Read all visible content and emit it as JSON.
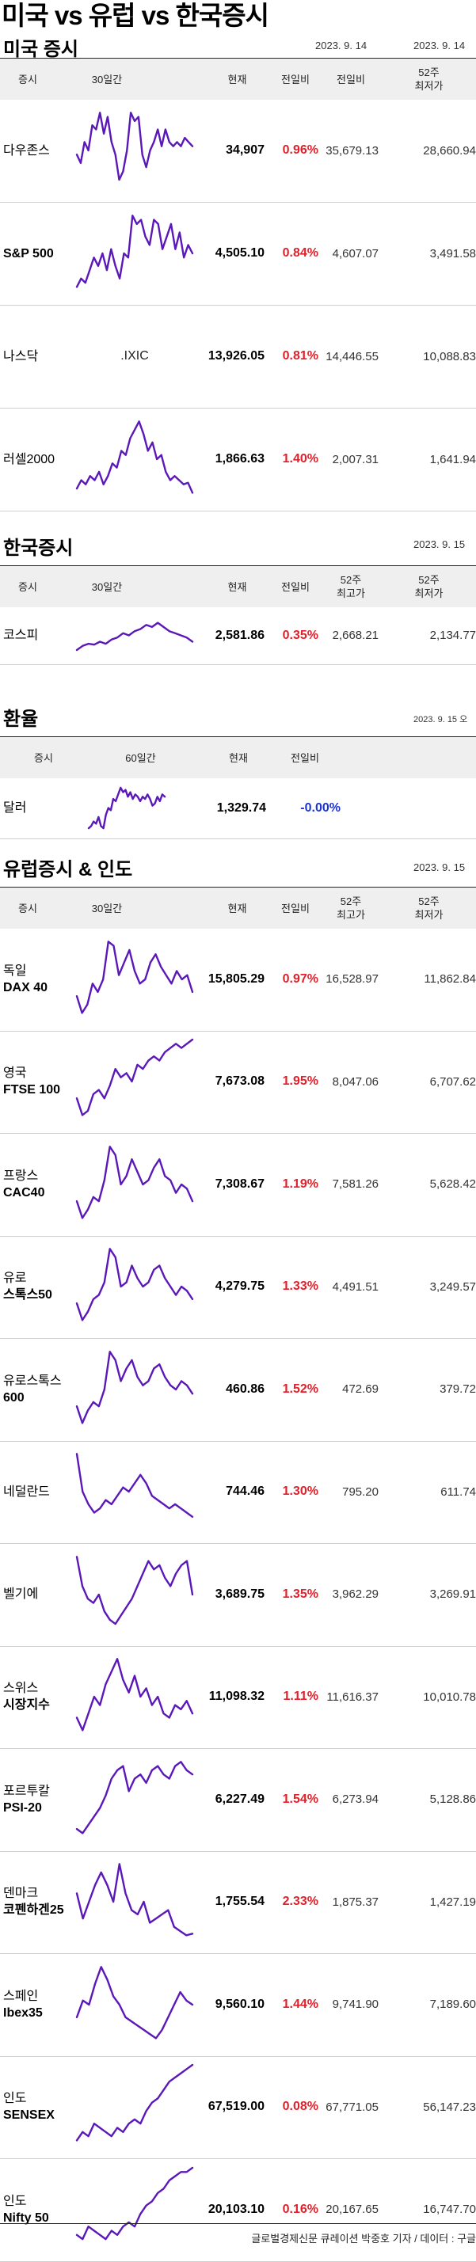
{
  "page_title": "미국 vs 유럽 vs 한국증시",
  "colors": {
    "line": "#5b18b8",
    "up": "#e0202a",
    "down": "#1a33d6",
    "header_bg": "#efefef"
  },
  "us": {
    "title": "미국 증시",
    "date1": "2023. 9. 14",
    "date2": "2023. 9. 14",
    "headers": [
      "증시",
      "30일간",
      "현재",
      "전일비",
      "전일비",
      "52주\n최저가"
    ],
    "rows": [
      {
        "name1": "다우존스",
        "name2": "",
        "current": "34,907",
        "change": "0.96%",
        "dir": "up",
        "v1": "35,679.13",
        "v2": "28,660.94",
        "spark": [
          0.45,
          0.35,
          0.6,
          0.5,
          0.8,
          0.75,
          0.95,
          0.7,
          0.9,
          0.6,
          0.45,
          0.15,
          0.25,
          0.5,
          0.95,
          0.85,
          0.9,
          0.45,
          0.3,
          0.5,
          0.6,
          0.75,
          0.55,
          0.75,
          0.6,
          0.55,
          0.6,
          0.55,
          0.65,
          0.6,
          0.55
        ]
      },
      {
        "name1": "S&P 500",
        "name2": "",
        "bold1": true,
        "current": "4,505.10",
        "change": "0.84%",
        "dir": "up",
        "v1": "4,607.07",
        "v2": "3,491.58",
        "spark": [
          0.1,
          0.2,
          0.15,
          0.3,
          0.45,
          0.35,
          0.5,
          0.3,
          0.55,
          0.35,
          0.2,
          0.5,
          0.45,
          0.95,
          0.85,
          0.9,
          0.7,
          0.6,
          0.9,
          0.85,
          0.55,
          0.7,
          0.85,
          0.55,
          0.75,
          0.45,
          0.6,
          0.5
        ]
      },
      {
        "name1": "나스닥",
        "name2": "",
        "ticker": ".IXIC",
        "current": "13,926.05",
        "change": "0.81%",
        "dir": "up",
        "v1": "14,446.55",
        "v2": "10,088.83"
      },
      {
        "name1": "러셀2000",
        "name2": "",
        "current": "1,866.63",
        "change": "1.40%",
        "dir": "up",
        "v1": "2,007.31",
        "v2": "1,641.94",
        "spark": [
          0.15,
          0.25,
          0.2,
          0.3,
          0.25,
          0.35,
          0.2,
          0.3,
          0.45,
          0.4,
          0.6,
          0.55,
          0.75,
          0.85,
          0.95,
          0.8,
          0.6,
          0.7,
          0.5,
          0.55,
          0.35,
          0.25,
          0.3,
          0.25,
          0.2,
          0.22,
          0.1
        ]
      }
    ]
  },
  "kr": {
    "title": "한국증시",
    "date": "2023. 9. 15",
    "headers": [
      "증시",
      "30일간",
      "현재",
      "전일비",
      "52주\n최고가",
      "52주\n최저가"
    ],
    "rows": [
      {
        "name1": "코스피",
        "name2": "",
        "current": "2,581.86",
        "change": "0.35%",
        "dir": "up",
        "v1": "2,668.21",
        "v2": "2,134.77",
        "spark": [
          0.15,
          0.25,
          0.3,
          0.28,
          0.35,
          0.3,
          0.4,
          0.45,
          0.55,
          0.5,
          0.6,
          0.65,
          0.75,
          0.7,
          0.8,
          0.7,
          0.6,
          0.55,
          0.5,
          0.45,
          0.35
        ]
      }
    ]
  },
  "fx": {
    "title": "환율",
    "date": "2023. 9. 15 오",
    "headers": [
      "증시",
      "60일간",
      "현재",
      "전일비"
    ],
    "rows": [
      {
        "name1": "달러",
        "name2": "",
        "current": "1,329.74",
        "change": "-0.00%",
        "dir": "down",
        "spark": [
          0.05,
          0.1,
          0.2,
          0.15,
          0.3,
          0.1,
          0.05,
          0.35,
          0.5,
          0.45,
          0.7,
          0.65,
          0.8,
          0.95,
          0.85,
          0.9,
          0.75,
          0.85,
          0.7,
          0.8,
          0.75,
          0.65,
          0.75,
          0.7,
          0.8,
          0.7,
          0.55,
          0.6,
          0.75,
          0.65,
          0.8,
          0.75
        ]
      }
    ]
  },
  "eu": {
    "title": "유럽증시 & 인도",
    "date": "2023. 9. 15",
    "headers": [
      "증시",
      "30일간",
      "현재",
      "전일비",
      "52주\n최고가",
      "52주\n최저가"
    ],
    "rows": [
      {
        "name1": "독일",
        "name2": "DAX 40",
        "current": "15,805.29",
        "change": "0.97%",
        "dir": "up",
        "v1": "16,528.97",
        "v2": "11,862.84",
        "spark": [
          0.3,
          0.1,
          0.2,
          0.45,
          0.35,
          0.5,
          0.95,
          0.9,
          0.55,
          0.7,
          0.85,
          0.6,
          0.45,
          0.5,
          0.7,
          0.8,
          0.65,
          0.55,
          0.45,
          0.6,
          0.5,
          0.55,
          0.35
        ]
      },
      {
        "name1": "영국",
        "name2": "FTSE 100",
        "current": "7,673.08",
        "change": "1.95%",
        "dir": "up",
        "v1": "8,047.06",
        "v2": "6,707.62",
        "spark": [
          0.3,
          0.1,
          0.15,
          0.35,
          0.4,
          0.3,
          0.45,
          0.65,
          0.55,
          0.6,
          0.5,
          0.7,
          0.65,
          0.75,
          0.8,
          0.75,
          0.85,
          0.9,
          0.95,
          0.9,
          0.95,
          1.0
        ]
      },
      {
        "name1": "프랑스",
        "name2": "CAC40",
        "current": "7,308.67",
        "change": "1.19%",
        "dir": "up",
        "v1": "7,581.26",
        "v2": "5,628.42",
        "spark": [
          0.3,
          0.1,
          0.2,
          0.35,
          0.3,
          0.55,
          0.95,
          0.85,
          0.5,
          0.6,
          0.8,
          0.65,
          0.5,
          0.55,
          0.7,
          0.8,
          0.6,
          0.55,
          0.4,
          0.5,
          0.45,
          0.3
        ]
      },
      {
        "name1": "유로",
        "name2": "스톡스50",
        "current": "4,279.75",
        "change": "1.33%",
        "dir": "up",
        "v1": "4,491.51",
        "v2": "3,249.57",
        "spark": [
          0.3,
          0.1,
          0.2,
          0.35,
          0.4,
          0.55,
          0.95,
          0.85,
          0.5,
          0.55,
          0.75,
          0.6,
          0.5,
          0.55,
          0.7,
          0.75,
          0.6,
          0.5,
          0.4,
          0.5,
          0.45,
          0.35
        ]
      },
      {
        "name1": "유로스톡스",
        "name2": "600",
        "current": "460.86",
        "change": "1.52%",
        "dir": "up",
        "v1": "472.69",
        "v2": "379.72",
        "spark": [
          0.3,
          0.1,
          0.25,
          0.35,
          0.3,
          0.5,
          0.95,
          0.85,
          0.6,
          0.75,
          0.85,
          0.65,
          0.55,
          0.6,
          0.75,
          0.8,
          0.65,
          0.55,
          0.5,
          0.6,
          0.55,
          0.45
        ]
      },
      {
        "name1": "네덜란드",
        "name2": "",
        "current": "744.46",
        "change": "1.30%",
        "dir": "up",
        "v1": "795.20",
        "v2": "611.74",
        "spark": [
          0.95,
          0.5,
          0.35,
          0.25,
          0.3,
          0.4,
          0.35,
          0.45,
          0.55,
          0.5,
          0.6,
          0.7,
          0.6,
          0.45,
          0.4,
          0.35,
          0.3,
          0.35,
          0.3,
          0.25,
          0.2
        ]
      },
      {
        "name1": "벨기에",
        "name2": "",
        "current": "3,689.75",
        "change": "1.35%",
        "dir": "up",
        "v1": "3,962.29",
        "v2": "3,269.91",
        "spark": [
          0.95,
          0.6,
          0.45,
          0.4,
          0.5,
          0.3,
          0.2,
          0.15,
          0.25,
          0.35,
          0.45,
          0.6,
          0.75,
          0.9,
          0.8,
          0.85,
          0.7,
          0.6,
          0.75,
          0.85,
          0.9,
          0.5
        ]
      },
      {
        "name1": "스위스",
        "name2": "시장지수",
        "current": "11,098.32",
        "change": "1.11%",
        "dir": "up",
        "v1": "11,616.37",
        "v2": "10,010.78",
        "spark": [
          0.25,
          0.1,
          0.3,
          0.5,
          0.4,
          0.65,
          0.8,
          0.95,
          0.7,
          0.55,
          0.75,
          0.5,
          0.6,
          0.4,
          0.5,
          0.3,
          0.25,
          0.4,
          0.35,
          0.45,
          0.3
        ]
      },
      {
        "name1": "포르투칼",
        "name2": "PSI-20",
        "current": "6,227.49",
        "change": "1.54%",
        "dir": "up",
        "v1": "6,273.94",
        "v2": "5,128.86",
        "spark": [
          0.15,
          0.1,
          0.2,
          0.3,
          0.4,
          0.55,
          0.75,
          0.85,
          0.9,
          0.6,
          0.75,
          0.8,
          0.7,
          0.85,
          0.9,
          0.8,
          0.75,
          0.9,
          0.95,
          0.85,
          0.8
        ]
      },
      {
        "name1": "덴마크",
        "name2": "코펜하겐25",
        "current": "1,755.54",
        "change": "2.33%",
        "dir": "up",
        "v1": "1,875.37",
        "v2": "1,427.19",
        "spark": [
          0.6,
          0.3,
          0.5,
          0.7,
          0.85,
          0.7,
          0.5,
          0.95,
          0.6,
          0.4,
          0.35,
          0.5,
          0.25,
          0.3,
          0.35,
          0.4,
          0.2,
          0.15,
          0.1,
          0.12
        ]
      },
      {
        "name1": "스페인",
        "name2": "Ibex35",
        "current": "9,560.10",
        "change": "1.44%",
        "dir": "up",
        "v1": "9,741.90",
        "v2": "7,189.60",
        "spark": [
          0.35,
          0.55,
          0.5,
          0.75,
          0.95,
          0.8,
          0.6,
          0.5,
          0.35,
          0.3,
          0.25,
          0.2,
          0.15,
          0.1,
          0.2,
          0.35,
          0.5,
          0.65,
          0.55,
          0.5
        ]
      },
      {
        "name1": "인도",
        "name2": "SENSEX",
        "current": "67,519.00",
        "change": "0.08%",
        "dir": "up",
        "v1": "67,771.05",
        "v2": "56,147.23",
        "spark": [
          0.1,
          0.2,
          0.15,
          0.3,
          0.25,
          0.2,
          0.15,
          0.25,
          0.2,
          0.3,
          0.35,
          0.3,
          0.45,
          0.55,
          0.6,
          0.7,
          0.8,
          0.85,
          0.9,
          0.95,
          1.0
        ]
      },
      {
        "name1": "인도",
        "name2": "Nifty 50",
        "current": "20,103.10",
        "change": "0.16%",
        "dir": "up",
        "v1": "20,167.65",
        "v2": "16,747.70",
        "spark": [
          0.2,
          0.15,
          0.3,
          0.25,
          0.2,
          0.15,
          0.25,
          0.2,
          0.3,
          0.35,
          0.3,
          0.45,
          0.55,
          0.6,
          0.7,
          0.75,
          0.85,
          0.9,
          0.95,
          0.95,
          1.0
        ]
      }
    ]
  },
  "footer": "글로벌경제신문 큐레이션 박중호 기자 / 데이터 : 구글"
}
